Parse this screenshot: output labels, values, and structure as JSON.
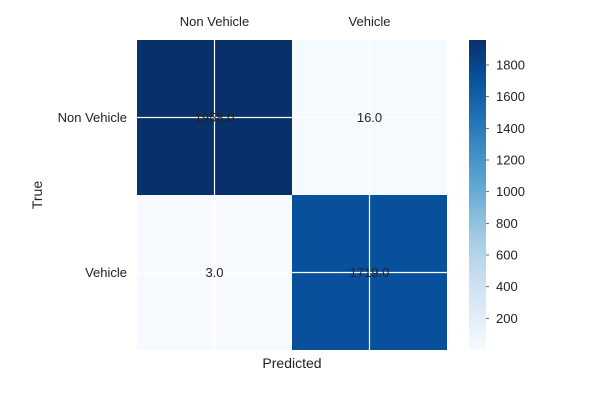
{
  "chart_data": {
    "type": "heatmap",
    "title": "",
    "xlabel": "Predicted",
    "ylabel": "True",
    "x_categories": [
      "Non Vehicle",
      "Vehicle"
    ],
    "y_categories": [
      "Non Vehicle",
      "Vehicle"
    ],
    "values": [
      [
        1958.0,
        16.0
      ],
      [
        3.0,
        1719.0
      ]
    ],
    "value_labels": [
      [
        "1958.0",
        "16.0"
      ],
      [
        "3.0",
        "1719.0"
      ]
    ],
    "colormap": "Blues",
    "color_low": "#f7fbff",
    "color_high": "#08306b",
    "colorbar": {
      "range": [
        0,
        1958
      ],
      "ticks": [
        200,
        400,
        600,
        800,
        1000,
        1200,
        1400,
        1600,
        1800
      ],
      "tick_labels": [
        "200",
        "400",
        "600",
        "800",
        "1000",
        "1200",
        "1400",
        "1600",
        "1800"
      ]
    },
    "x_ticks_position": "top",
    "grid": true,
    "grid_color": "#ffffff"
  }
}
